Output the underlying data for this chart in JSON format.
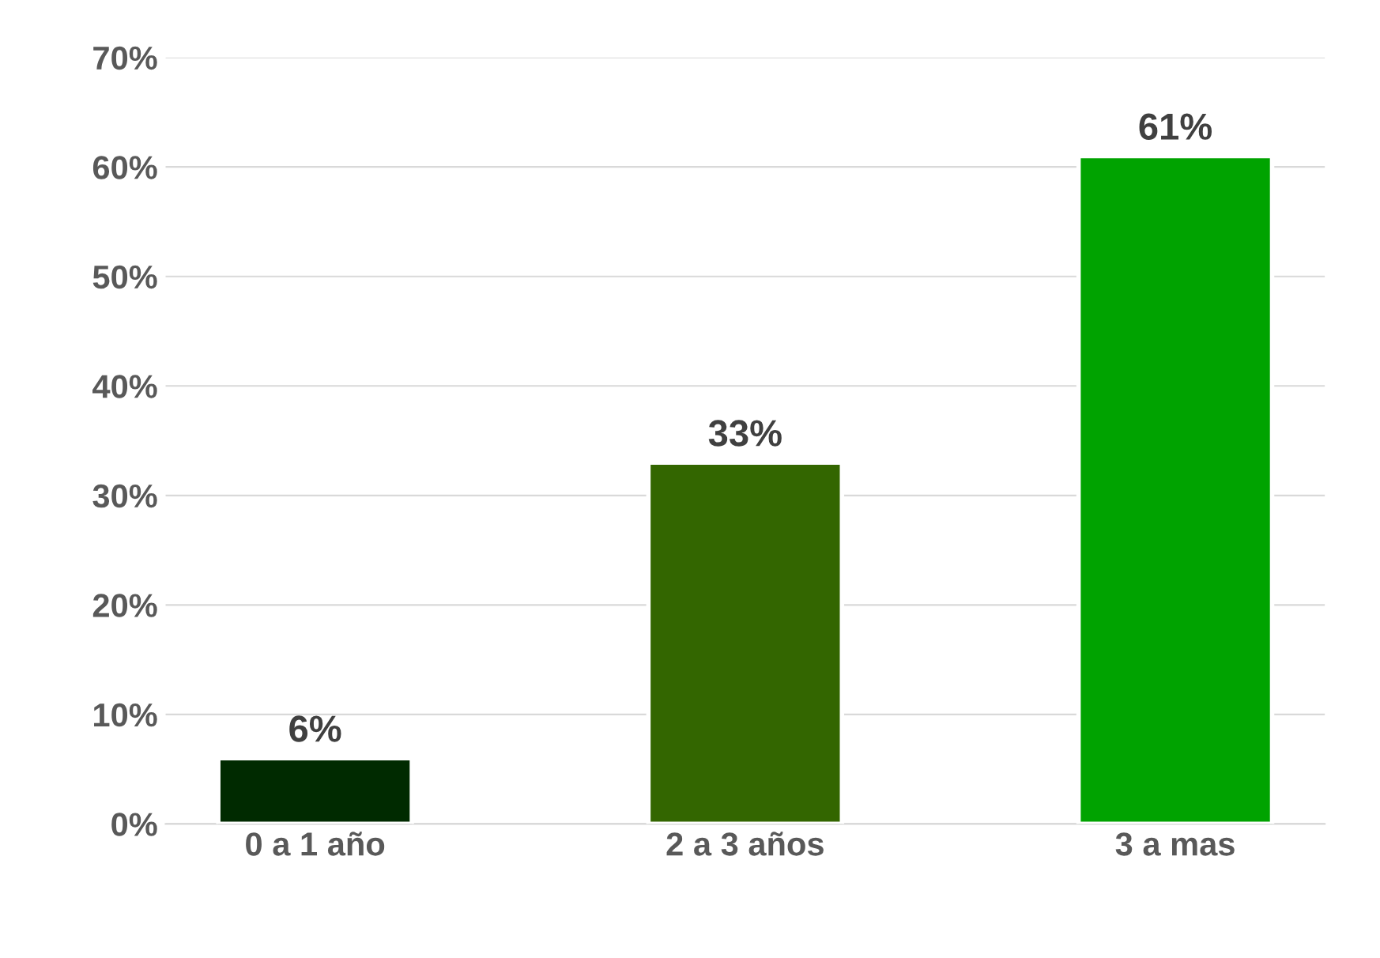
{
  "chart_data": {
    "type": "bar",
    "categories": [
      "0 a 1 año",
      "2 a 3 años",
      "3 a mas"
    ],
    "values": [
      6,
      33,
      61
    ],
    "colors": [
      "#002a00",
      "#336600",
      "#00a300"
    ],
    "value_labels": [
      "6%",
      "33%",
      "61%"
    ],
    "ylim": [
      0,
      70
    ],
    "yticks": [
      {
        "value": 0,
        "label": "0%"
      },
      {
        "value": 10,
        "label": "10%"
      },
      {
        "value": 20,
        "label": "20%"
      },
      {
        "value": 30,
        "label": "30%"
      },
      {
        "value": 40,
        "label": "40%"
      },
      {
        "value": 50,
        "label": "50%"
      },
      {
        "value": 60,
        "label": "60%"
      },
      {
        "value": 70,
        "label": "70%"
      }
    ],
    "grid": "y"
  }
}
